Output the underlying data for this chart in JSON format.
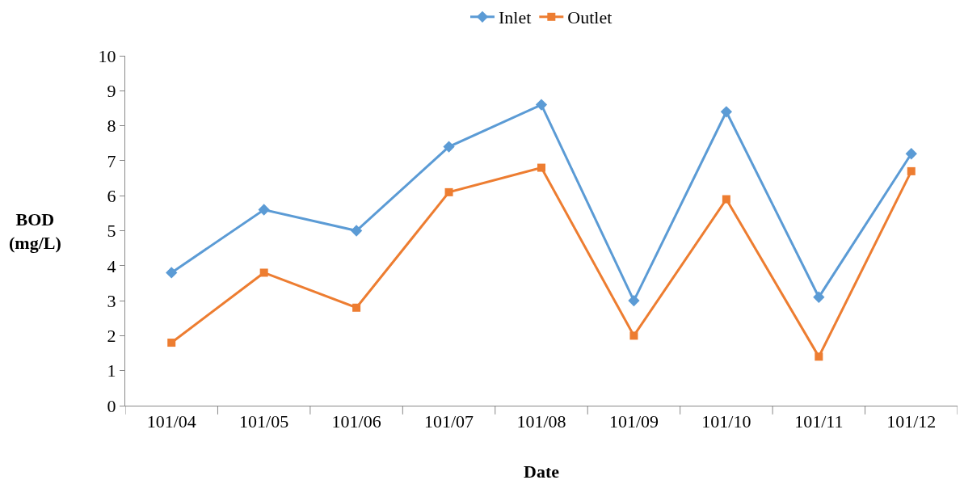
{
  "chart_data": {
    "type": "line",
    "xlabel": "Date",
    "ylabel": "BOD\n(mg/L)",
    "categories": [
      "101/04",
      "101/05",
      "101/06",
      "101/07",
      "101/08",
      "101/09",
      "101/10",
      "101/11",
      "101/12"
    ],
    "series": [
      {
        "name": "Inlet",
        "color": "#5b9bd5",
        "marker": "diamond",
        "values": [
          3.8,
          5.6,
          5.0,
          7.4,
          8.6,
          3.0,
          8.4,
          3.1,
          7.2
        ]
      },
      {
        "name": "Outlet",
        "color": "#ed7d31",
        "marker": "square",
        "values": [
          1.8,
          3.8,
          2.8,
          6.1,
          6.8,
          2.0,
          5.9,
          1.4,
          6.7
        ]
      }
    ],
    "ylim": [
      0,
      10
    ],
    "yticks": [
      0,
      1,
      2,
      3,
      4,
      5,
      6,
      7,
      8,
      9,
      10
    ],
    "grid": false,
    "legend": "top",
    "line_style": "solid"
  }
}
